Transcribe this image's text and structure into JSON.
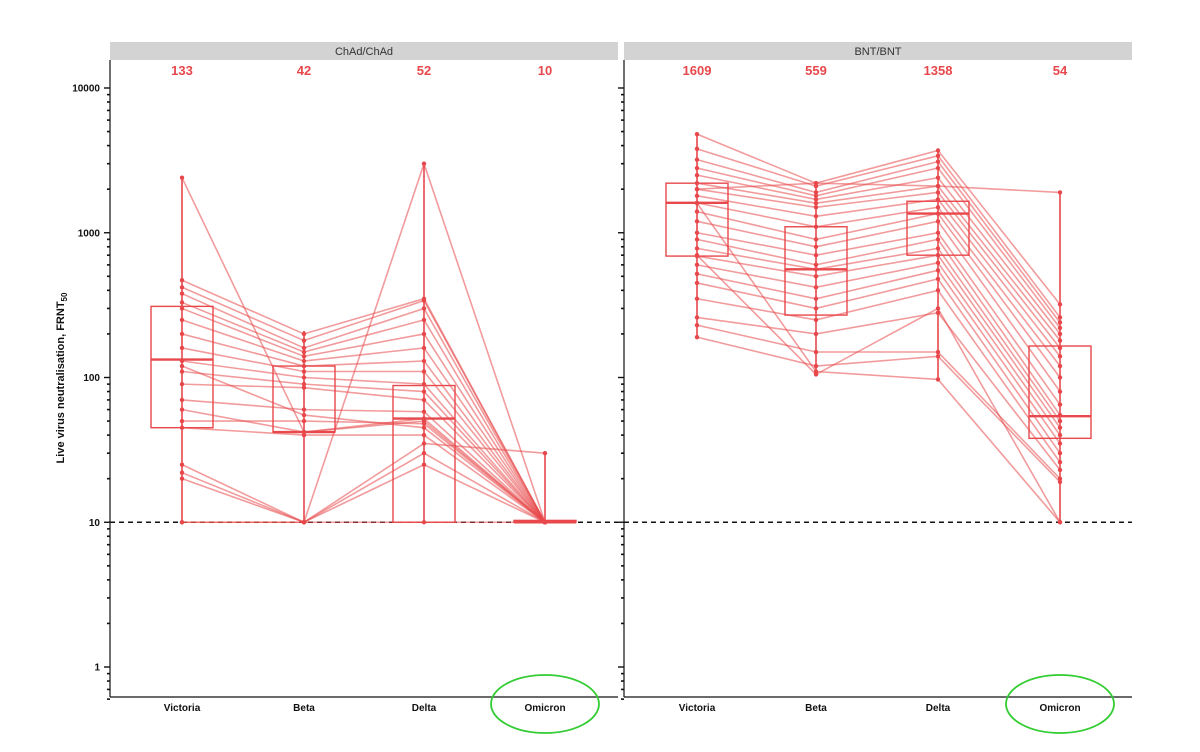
{
  "chart_data": {
    "type": "box",
    "y_scale": "log10",
    "ylim": [
      0.6,
      15000
    ],
    "ylabel": "Live virus neutralisation, FRNT",
    "ylabel_sub": "50",
    "yticks": [
      1,
      10,
      100,
      1000,
      10000
    ],
    "ytick_labels": [
      "1",
      "10",
      "100",
      "1000",
      "10000"
    ],
    "threshold": 10,
    "categories": [
      "Victoria",
      "Beta",
      "Delta",
      "Omicron"
    ],
    "highlight_category": "Omicron",
    "colors": {
      "series": "#e8484b",
      "threshold": "#111111",
      "highlight": "#33cc33",
      "strip": "#d3d3d3"
    },
    "panels": [
      {
        "name": "ChAd/ChAd",
        "medians_label": [
          "133",
          "42",
          "52",
          "10"
        ],
        "boxes": [
          {
            "q1": 45,
            "median": 133,
            "q3": 310,
            "min": 10,
            "max": 2400
          },
          {
            "q1": 42,
            "median": 42,
            "q3": 120,
            "min": 10,
            "max": 210
          },
          {
            "q1": 10,
            "median": 52,
            "q3": 88,
            "min": 10,
            "max": 3000
          },
          {
            "q1": 10,
            "median": 10,
            "q3": 10.3,
            "min": 10,
            "max": 30
          }
        ],
        "participants": [
          [
            2400,
            42,
            52,
            10
          ],
          [
            470,
            200,
            350,
            10
          ],
          [
            420,
            180,
            340,
            10
          ],
          [
            380,
            160,
            300,
            10
          ],
          [
            330,
            150,
            250,
            10
          ],
          [
            300,
            140,
            200,
            10
          ],
          [
            250,
            130,
            160,
            10
          ],
          [
            200,
            120,
            130,
            10
          ],
          [
            160,
            110,
            110,
            10
          ],
          [
            130,
            100,
            90,
            10
          ],
          [
            110,
            90,
            80,
            10
          ],
          [
            90,
            85,
            70,
            10
          ],
          [
            70,
            60,
            58,
            10
          ],
          [
            50,
            50,
            48,
            10
          ],
          [
            45,
            40,
            40,
            10
          ],
          [
            25,
            10,
            10,
            10
          ],
          [
            22,
            10,
            30,
            10
          ],
          [
            20,
            10,
            35,
            30
          ],
          [
            10,
            10,
            25,
            10
          ],
          [
            10,
            10,
            3000,
            10
          ],
          [
            120,
            55,
            45,
            10
          ],
          [
            60,
            42,
            50,
            10
          ]
        ]
      },
      {
        "name": "BNT/BNT",
        "medians_label": [
          "1609",
          "559",
          "1358",
          "54"
        ],
        "boxes": [
          {
            "q1": 690,
            "median": 1609,
            "q3": 2200,
            "min": 190,
            "max": 4800
          },
          {
            "q1": 270,
            "median": 559,
            "q3": 1100,
            "min": 105,
            "max": 2200
          },
          {
            "q1": 700,
            "median": 1358,
            "q3": 1650,
            "min": 97,
            "max": 3700
          },
          {
            "q1": 38,
            "median": 54,
            "q3": 165,
            "min": 10,
            "max": 1900
          }
        ],
        "participants": [
          [
            4800,
            2200,
            3700,
            320
          ],
          [
            3800,
            2100,
            3400,
            260
          ],
          [
            3200,
            1900,
            3100,
            240
          ],
          [
            2800,
            1800,
            2800,
            220
          ],
          [
            2500,
            1700,
            2400,
            200
          ],
          [
            2200,
            1600,
            2100,
            180
          ],
          [
            2000,
            1500,
            1900,
            160
          ],
          [
            1800,
            1300,
            1700,
            140
          ],
          [
            1609,
            1100,
            1500,
            120
          ],
          [
            1400,
            900,
            1358,
            100
          ],
          [
            1200,
            800,
            1200,
            80
          ],
          [
            1000,
            700,
            1000,
            65
          ],
          [
            900,
            600,
            900,
            55
          ],
          [
            780,
            559,
            780,
            50
          ],
          [
            690,
            500,
            700,
            45
          ],
          [
            600,
            420,
            620,
            40
          ],
          [
            520,
            350,
            550,
            35
          ],
          [
            450,
            300,
            480,
            30
          ],
          [
            350,
            250,
            400,
            26
          ],
          [
            260,
            200,
            280,
            23
          ],
          [
            230,
            150,
            150,
            20
          ],
          [
            190,
            120,
            140,
            19
          ],
          [
            2000,
            2200,
            2100,
            1900
          ],
          [
            1600,
            110,
            97,
            10
          ],
          [
            700,
            105,
            300,
            10
          ]
        ]
      }
    ]
  }
}
